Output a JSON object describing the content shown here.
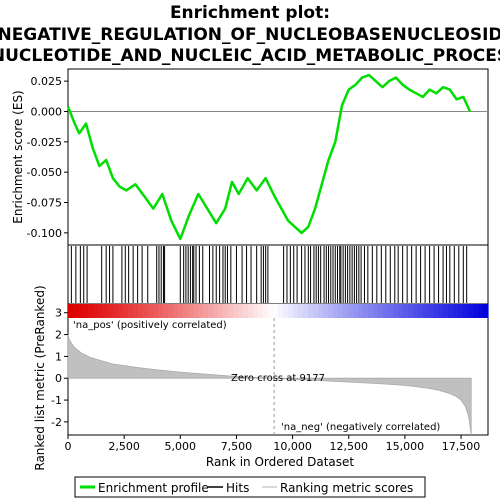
{
  "chart_data": {
    "type": "line",
    "title_lines": [
      "Enrichment plot:",
      "NEGATIVE_REGULATION_OF_NUCLEOBASENUCLEOSID",
      "NUCLEOTIDE_AND_NUCLEIC_ACID_METABOLIC_PROCES"
    ],
    "es_panel": {
      "ylabel": "Enrichment score (ES)",
      "ylim": [
        -0.11,
        0.035
      ],
      "yticks": [
        0.025,
        0.0,
        -0.025,
        -0.05,
        -0.075,
        -0.1
      ],
      "ytick_labels": [
        "0.025",
        "0.000",
        "-0.025",
        "-0.050",
        "-0.075",
        "-0.100"
      ],
      "series_name": "Enrichment profile",
      "color": "#00dd00",
      "x": [
        0,
        300,
        500,
        800,
        1100,
        1400,
        1700,
        2000,
        2300,
        2600,
        3000,
        3400,
        3800,
        4200,
        4600,
        5000,
        5400,
        5800,
        6200,
        6600,
        7000,
        7300,
        7600,
        8000,
        8400,
        8800,
        9200,
        9500,
        9800,
        10100,
        10400,
        10700,
        11000,
        11300,
        11600,
        11900,
        12200,
        12500,
        12800,
        13100,
        13400,
        13700,
        14000,
        14300,
        14600,
        14900,
        15200,
        15500,
        15800,
        16100,
        16400,
        16700,
        17000,
        17300,
        17600,
        17900
      ],
      "y": [
        0.004,
        -0.01,
        -0.018,
        -0.01,
        -0.03,
        -0.045,
        -0.04,
        -0.055,
        -0.062,
        -0.065,
        -0.06,
        -0.07,
        -0.08,
        -0.068,
        -0.09,
        -0.105,
        -0.085,
        -0.068,
        -0.08,
        -0.092,
        -0.08,
        -0.058,
        -0.068,
        -0.055,
        -0.065,
        -0.055,
        -0.07,
        -0.08,
        -0.09,
        -0.095,
        -0.1,
        -0.095,
        -0.08,
        -0.06,
        -0.04,
        -0.025,
        0.005,
        0.018,
        0.022,
        0.028,
        0.03,
        0.025,
        0.02,
        0.025,
        0.028,
        0.022,
        0.018,
        0.015,
        0.012,
        0.018,
        0.015,
        0.02,
        0.018,
        0.01,
        0.012,
        0.0
      ]
    },
    "hits": {
      "legend_label": "Hits",
      "positions": [
        150,
        350,
        550,
        700,
        850,
        1500,
        1700,
        1850,
        2000,
        2400,
        2550,
        2700,
        2900,
        3100,
        3300,
        3550,
        3950,
        4050,
        4150,
        4250,
        4300,
        5000,
        5150,
        5250,
        5350,
        5450,
        5550,
        5600,
        5700,
        5850,
        6000,
        6300,
        6450,
        6600,
        6750,
        6900,
        7000,
        7100,
        7250,
        7500,
        7750,
        7950,
        8150,
        8400,
        8600,
        8700,
        8800,
        8900,
        9600,
        9750,
        9900,
        10050,
        10200,
        10400,
        10550,
        10700,
        10800,
        10950,
        11050,
        11150,
        11250,
        11400,
        11500,
        11600,
        11700,
        11800,
        11900,
        12000,
        12100,
        12150,
        12250,
        12350,
        12450,
        12550,
        12650,
        12750,
        12850,
        12950,
        13050,
        13200,
        13350,
        13550,
        13750,
        13950,
        14150,
        14350,
        14550,
        14700,
        14900,
        15100,
        15300,
        15500,
        15700,
        15900,
        16100,
        16300,
        16500,
        16700,
        16850,
        17000,
        17200,
        17400,
        17600,
        17750
      ]
    },
    "ranked_metric": {
      "ylabel": "Ranked list metric (PreRanked)",
      "ylim": [
        -2.6,
        3.4
      ],
      "yticks": [
        3,
        2,
        1,
        0,
        -1,
        -2
      ],
      "ytick_labels": [
        "3",
        "2",
        "1",
        "0",
        "-1",
        "-2"
      ],
      "legend_label": "Ranking metric scores",
      "profile_x": [
        0,
        50,
        150,
        300,
        600,
        1000,
        1500,
        2000,
        3000,
        4000,
        5000,
        6000,
        7000,
        8000,
        9177,
        10000,
        11000,
        12000,
        13000,
        14000,
        15000,
        16000,
        16500,
        17000,
        17300,
        17500,
        17700,
        17850,
        17950
      ],
      "profile_y": [
        2.0,
        1.8,
        1.6,
        1.4,
        1.15,
        0.95,
        0.8,
        0.65,
        0.5,
        0.38,
        0.28,
        0.2,
        0.12,
        0.05,
        0.0,
        -0.05,
        -0.1,
        -0.15,
        -0.2,
        -0.26,
        -0.33,
        -0.45,
        -0.55,
        -0.7,
        -0.85,
        -1.0,
        -1.3,
        -1.8,
        -2.6
      ],
      "zero_cross_x": 9177,
      "zero_cross_label": "Zero cross at 9177",
      "pos_label": "'na_pos' (positively correlated)",
      "neg_label": "'na_neg' (negatively correlated)",
      "pos_color": "#dd0000",
      "neg_color": "#0000ee"
    },
    "xaxis": {
      "xlabel": "Rank in Ordered Dataset",
      "xlim": [
        0,
        18700
      ],
      "xticks": [
        0,
        2500,
        5000,
        7500,
        10000,
        12500,
        15000,
        17500
      ],
      "xtick_labels": [
        "0",
        "2,500",
        "5,000",
        "7,500",
        "10,000",
        "12,500",
        "15,000",
        "17,500"
      ]
    },
    "legend": {
      "items": [
        "Enrichment profile",
        "Hits",
        "Ranking metric scores"
      ]
    }
  }
}
